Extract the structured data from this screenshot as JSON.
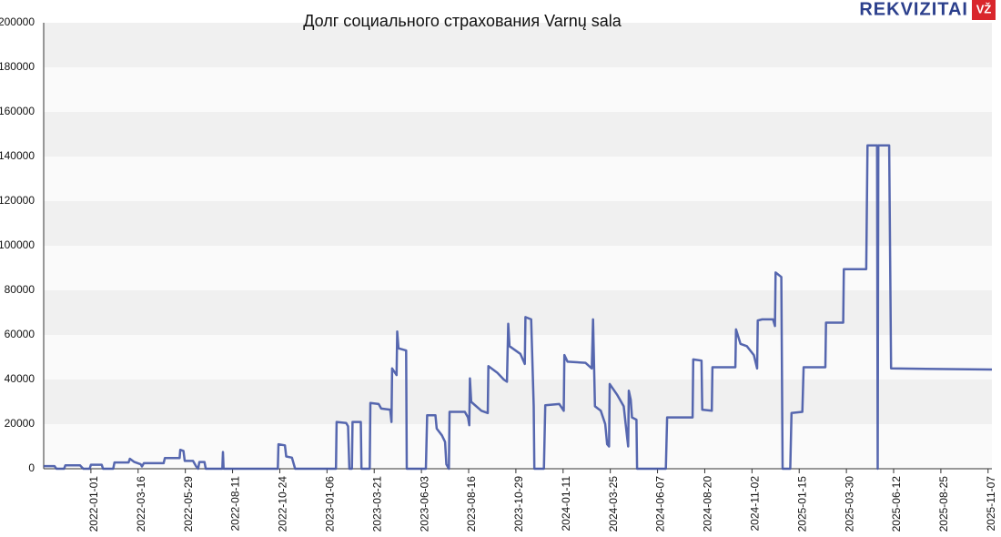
{
  "logo": {
    "name": "REKVIZITAI",
    "badge": "VŽ"
  },
  "chart_data": {
    "type": "line",
    "title": "Долг социального страхования Varnų sala",
    "color": "#4457a6",
    "xlim": [
      "2021-10-19",
      "2025-11-13"
    ],
    "xticks": [
      "2022-01-01",
      "2022-03-16",
      "2022-05-29",
      "2022-08-11",
      "2022-10-24",
      "2023-01-06",
      "2023-03-21",
      "2023-06-03",
      "2023-08-16",
      "2023-10-29",
      "2024-01-11",
      "2024-03-25",
      "2024-06-07",
      "2024-08-20",
      "2024-11-02",
      "2025-01-15",
      "2025-03-30",
      "2025-06-12",
      "2025-08-25",
      "2025-11-07"
    ],
    "ylim": [
      0,
      200000
    ],
    "yticks": [
      0,
      20000,
      40000,
      60000,
      80000,
      100000,
      120000,
      140000,
      160000,
      180000,
      200000
    ],
    "x": [
      "2021-10-19",
      "2021-11-05",
      "2021-11-08",
      "2021-11-20",
      "2021-11-22",
      "2021-12-15",
      "2021-12-20",
      "2021-12-30",
      "2022-01-01",
      "2022-01-18",
      "2022-01-20",
      "2022-02-05",
      "2022-02-07",
      "2022-03-01",
      "2022-03-03",
      "2022-03-10",
      "2022-03-20",
      "2022-03-22",
      "2022-03-25",
      "2022-04-25",
      "2022-04-27",
      "2022-05-20",
      "2022-05-21",
      "2022-05-26",
      "2022-05-28",
      "2022-06-10",
      "2022-06-15",
      "2022-06-18",
      "2022-06-20",
      "2022-06-28",
      "2022-06-30",
      "2022-07-26",
      "2022-07-27",
      "2022-07-28",
      "2022-10-21",
      "2022-10-22",
      "2022-11-01",
      "2022-11-03",
      "2022-11-12",
      "2022-11-17",
      "2023-01-20",
      "2023-01-21",
      "2023-02-05",
      "2023-02-08",
      "2023-02-10",
      "2023-02-14",
      "2023-02-15",
      "2023-02-28",
      "2023-03-01",
      "2023-03-14",
      "2023-03-15",
      "2023-03-28",
      "2023-04-01",
      "2023-04-15",
      "2023-04-17",
      "2023-04-18",
      "2023-04-25",
      "2023-04-26",
      "2023-04-28",
      "2023-05-10",
      "2023-05-11",
      "2023-06-10",
      "2023-06-12",
      "2023-06-25",
      "2023-06-27",
      "2023-07-05",
      "2023-07-10",
      "2023-07-12",
      "2023-07-16",
      "2023-07-17",
      "2023-08-10",
      "2023-08-15",
      "2023-08-17",
      "2023-08-18",
      "2023-08-20",
      "2023-09-05",
      "2023-09-15",
      "2023-09-16",
      "2023-09-30",
      "2023-10-10",
      "2023-10-15",
      "2023-10-17",
      "2023-10-19",
      "2023-11-05",
      "2023-11-12",
      "2023-11-13",
      "2023-11-22",
      "2023-11-26",
      "2023-11-27",
      "2023-12-12",
      "2023-12-14",
      "2024-01-05",
      "2024-01-12",
      "2024-01-13",
      "2024-01-18",
      "2024-02-15",
      "2024-02-25",
      "2024-02-27",
      "2024-03-01",
      "2024-03-10",
      "2024-03-17",
      "2024-03-20",
      "2024-03-23",
      "2024-03-24",
      "2024-04-05",
      "2024-04-15",
      "2024-04-20",
      "2024-04-22",
      "2024-04-23",
      "2024-04-26",
      "2024-04-28",
      "2024-05-05",
      "2024-05-06",
      "2024-06-20",
      "2024-06-22",
      "2024-08-01",
      "2024-08-02",
      "2024-08-15",
      "2024-08-16",
      "2024-08-31",
      "2024-09-01",
      "2024-10-07",
      "2024-10-08",
      "2024-10-15",
      "2024-10-25",
      "2024-11-05",
      "2024-11-10",
      "2024-11-11",
      "2024-11-18",
      "2024-12-05",
      "2024-12-08",
      "2024-12-09",
      "2024-12-18",
      "2024-12-20",
      "2025-01-01",
      "2025-01-03",
      "2025-01-20",
      "2025-01-22",
      "2025-02-25",
      "2025-02-26",
      "2025-03-25",
      "2025-03-26",
      "2025-04-30",
      "2025-05-02",
      "2025-05-17",
      "2025-05-18",
      "2025-05-19",
      "2025-06-05",
      "2025-06-08",
      "2025-11-13"
    ],
    "values": [
      1200,
      1200,
      0,
      0,
      1500,
      1500,
      0,
      0,
      1800,
      1800,
      0,
      0,
      2800,
      2800,
      4500,
      3000,
      2000,
      1000,
      2500,
      2500,
      4800,
      4800,
      8500,
      8000,
      3500,
      3500,
      1000,
      0,
      3000,
      3000,
      0,
      0,
      7500,
      0,
      0,
      11000,
      10500,
      5500,
      5000,
      0,
      0,
      21000,
      20500,
      19000,
      0,
      0,
      21000,
      21000,
      0,
      0,
      29500,
      29000,
      27000,
      26500,
      21000,
      45000,
      42000,
      61500,
      54000,
      53000,
      0,
      0,
      24000,
      24000,
      18000,
      15000,
      12000,
      2000,
      0,
      25500,
      25500,
      23000,
      19500,
      40500,
      30000,
      26000,
      25000,
      46000,
      43000,
      40000,
      39000,
      65000,
      55000,
      51500,
      47000,
      68000,
      67000,
      28000,
      0,
      0,
      28500,
      29000,
      26000,
      51000,
      48000,
      47500,
      45000,
      67000,
      28000,
      26000,
      20000,
      11000,
      10000,
      38000,
      33000,
      28000,
      15000,
      10000,
      35000,
      31000,
      23000,
      22000,
      0,
      0,
      23000,
      23000,
      49000,
      48500,
      26500,
      26000,
      45500,
      45500,
      62500,
      56000,
      55000,
      51000,
      45000,
      66500,
      67000,
      67000,
      64000,
      88000,
      86000,
      0,
      0,
      25000,
      25500,
      45500,
      45500,
      65500,
      65500,
      89500,
      89500,
      145000,
      145000,
      0,
      145000,
      145000,
      45000,
      44500
    ]
  }
}
